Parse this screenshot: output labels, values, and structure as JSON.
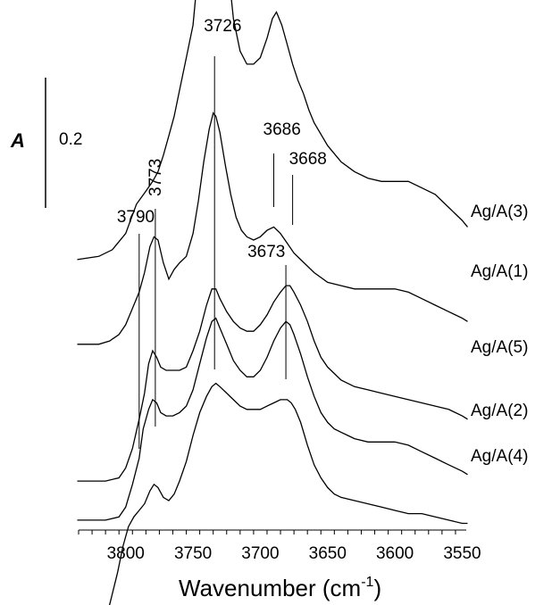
{
  "chart_data": {
    "type": "line",
    "title": "",
    "xlabel": "Wavenumber (cm",
    "xlabel_sup": "-1",
    "xlabel_close": ")",
    "ylabel": "",
    "xlim": [
      3835,
      3547
    ],
    "x_reversed": true,
    "x_ticks": [
      3800,
      3750,
      3700,
      3650,
      3600,
      3550
    ],
    "grid": false,
    "legend": "labels at right end of each trace",
    "scale_bar": {
      "letter": "A",
      "value": "0.2",
      "absorbance": 0.2
    },
    "peak_markers": [
      {
        "label": "3790",
        "x": 3790
      },
      {
        "label": "3773",
        "x": 3778
      },
      {
        "label": "3726",
        "x": 3734
      },
      {
        "label": "3686",
        "x": 3690
      },
      {
        "label": "3668",
        "x": 3676
      },
      {
        "label": "3673",
        "x": 3681
      }
    ],
    "series": [
      {
        "name": "Ag/A(3)",
        "x": [
          3836,
          3820,
          3810,
          3800,
          3792,
          3785,
          3780,
          3776,
          3772,
          3768,
          3764,
          3760,
          3755,
          3750,
          3745,
          3741,
          3738,
          3736,
          3734,
          3732,
          3730,
          3727,
          3724,
          3720,
          3715,
          3710,
          3705,
          3700,
          3695,
          3691,
          3688,
          3684,
          3680,
          3676,
          3672,
          3668,
          3664,
          3660,
          3650,
          3640,
          3630,
          3620,
          3610,
          3600,
          3590,
          3580,
          3570,
          3560,
          3550,
          3546
        ],
        "y": [
          0.07,
          0.075,
          0.085,
          0.11,
          0.155,
          0.175,
          0.19,
          0.205,
          0.23,
          0.26,
          0.29,
          0.33,
          0.38,
          0.43,
          0.54,
          0.66,
          0.78,
          0.82,
          0.83,
          0.81,
          0.74,
          0.62,
          0.52,
          0.44,
          0.39,
          0.37,
          0.37,
          0.38,
          0.41,
          0.44,
          0.45,
          0.43,
          0.4,
          0.37,
          0.345,
          0.325,
          0.3,
          0.28,
          0.245,
          0.22,
          0.205,
          0.195,
          0.19,
          0.19,
          0.19,
          0.18,
          0.17,
          0.15,
          0.13,
          0.12
        ]
      },
      {
        "name": "Ag/A(1)",
        "x": [
          3836,
          3820,
          3812,
          3805,
          3800,
          3795,
          3790,
          3786,
          3782,
          3779,
          3776,
          3772,
          3768,
          3764,
          3760,
          3755,
          3750,
          3746,
          3742,
          3738,
          3735,
          3733,
          3730,
          3726,
          3722,
          3718,
          3714,
          3710,
          3705,
          3700,
          3695,
          3690,
          3685,
          3680,
          3675,
          3670,
          3660,
          3650,
          3640,
          3630,
          3620,
          3610,
          3600,
          3590,
          3580,
          3570,
          3560,
          3550,
          3546
        ],
        "y": [
          -0.06,
          -0.06,
          -0.055,
          -0.045,
          -0.03,
          -0.005,
          0.02,
          0.05,
          0.09,
          0.105,
          0.1,
          0.065,
          0.04,
          0.055,
          0.065,
          0.075,
          0.11,
          0.16,
          0.22,
          0.27,
          0.295,
          0.29,
          0.265,
          0.215,
          0.17,
          0.135,
          0.115,
          0.105,
          0.1,
          0.105,
          0.115,
          0.12,
          0.11,
          0.095,
          0.08,
          0.07,
          0.05,
          0.035,
          0.03,
          0.025,
          0.025,
          0.025,
          0.025,
          0.02,
          0.01,
          0,
          -0.01,
          -0.02,
          -0.025
        ]
      },
      {
        "name": "Ag/A(5)",
        "x": [
          3836,
          3815,
          3805,
          3800,
          3795,
          3790,
          3786,
          3783,
          3780,
          3777,
          3774,
          3770,
          3765,
          3760,
          3755,
          3750,
          3745,
          3740,
          3736,
          3733,
          3730,
          3725,
          3720,
          3715,
          3710,
          3705,
          3700,
          3695,
          3690,
          3685,
          3681,
          3678,
          3675,
          3670,
          3665,
          3660,
          3655,
          3650,
          3645,
          3640,
          3630,
          3620,
          3610,
          3600,
          3590,
          3580,
          3570,
          3560,
          3550,
          3546
        ],
        "y": [
          -0.27,
          -0.27,
          -0.265,
          -0.25,
          -0.22,
          -0.175,
          -0.135,
          -0.09,
          -0.07,
          -0.08,
          -0.095,
          -0.1,
          -0.1,
          -0.1,
          -0.095,
          -0.07,
          -0.04,
          0.0,
          0.025,
          0.025,
          0.01,
          -0.01,
          -0.025,
          -0.035,
          -0.04,
          -0.04,
          -0.03,
          -0.015,
          0.005,
          0.02,
          0.03,
          0.03,
          0.02,
          0.0,
          -0.025,
          -0.055,
          -0.08,
          -0.095,
          -0.105,
          -0.115,
          -0.125,
          -0.13,
          -0.135,
          -0.14,
          -0.145,
          -0.15,
          -0.155,
          -0.16,
          -0.17,
          -0.175
        ]
      },
      {
        "name": "Ag/A(2)",
        "x": [
          3836,
          3815,
          3805,
          3800,
          3795,
          3790,
          3787,
          3783,
          3780,
          3777,
          3774,
          3770,
          3765,
          3760,
          3755,
          3750,
          3745,
          3740,
          3736,
          3733,
          3730,
          3725,
          3720,
          3715,
          3710,
          3705,
          3700,
          3695,
          3690,
          3685,
          3681,
          3678,
          3675,
          3670,
          3665,
          3660,
          3655,
          3650,
          3645,
          3640,
          3635,
          3630,
          3620,
          3610,
          3600,
          3590,
          3580,
          3570,
          3560,
          3550,
          3546
        ],
        "y": [
          -0.33,
          -0.33,
          -0.325,
          -0.31,
          -0.275,
          -0.235,
          -0.19,
          -0.16,
          -0.145,
          -0.15,
          -0.165,
          -0.17,
          -0.17,
          -0.165,
          -0.155,
          -0.13,
          -0.09,
          -0.05,
          -0.025,
          -0.02,
          -0.035,
          -0.06,
          -0.085,
          -0.1,
          -0.11,
          -0.11,
          -0.1,
          -0.08,
          -0.055,
          -0.035,
          -0.025,
          -0.03,
          -0.045,
          -0.075,
          -0.11,
          -0.14,
          -0.165,
          -0.18,
          -0.19,
          -0.195,
          -0.2,
          -0.205,
          -0.21,
          -0.21,
          -0.21,
          -0.215,
          -0.225,
          -0.235,
          -0.245,
          -0.255,
          -0.26
        ]
      },
      {
        "name": "Ag/A(4)",
        "x": [
          3836,
          3828,
          3820,
          3812,
          3806,
          3802,
          3798,
          3794,
          3790,
          3786,
          3782,
          3779,
          3776,
          3772,
          3768,
          3764,
          3760,
          3755,
          3750,
          3745,
          3740,
          3736,
          3733,
          3730,
          3725,
          3720,
          3715,
          3710,
          3705,
          3700,
          3695,
          3690,
          3685,
          3680,
          3677,
          3674,
          3670,
          3665,
          3660,
          3655,
          3650,
          3645,
          3640,
          3630,
          3620,
          3610,
          3600,
          3590,
          3580,
          3570,
          3560,
          3550,
          3546
        ],
        "y": [
          -0.49,
          -0.49,
          -0.485,
          -0.46,
          -0.41,
          -0.37,
          -0.34,
          -0.325,
          -0.315,
          -0.305,
          -0.285,
          -0.275,
          -0.28,
          -0.295,
          -0.3,
          -0.29,
          -0.27,
          -0.24,
          -0.2,
          -0.165,
          -0.14,
          -0.125,
          -0.12,
          -0.125,
          -0.135,
          -0.145,
          -0.155,
          -0.16,
          -0.16,
          -0.16,
          -0.155,
          -0.15,
          -0.145,
          -0.145,
          -0.15,
          -0.16,
          -0.18,
          -0.215,
          -0.245,
          -0.265,
          -0.28,
          -0.29,
          -0.295,
          -0.3,
          -0.305,
          -0.31,
          -0.315,
          -0.32,
          -0.32,
          -0.325,
          -0.33,
          -0.335,
          -0.335
        ]
      }
    ]
  }
}
